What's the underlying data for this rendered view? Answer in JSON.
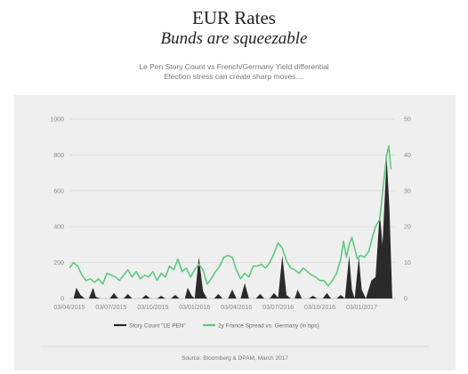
{
  "page": {
    "title": "EUR Rates",
    "subtitle": "Bunds are squeezable",
    "description_line1": "Le Pen Story Count vs French/Germany Yield differential",
    "description_line2": "Election stress can create sharp moves....",
    "source": "Source: Bloomberg &  DPAM, March 2017"
  },
  "chart_data": {
    "type": "area",
    "x_tick_labels": [
      "03/04/2015",
      "03/07/2015",
      "03/10/2015",
      "03/01/2016",
      "03/04/2016",
      "03/07/2016",
      "03/10/2016",
      "03/01/2017"
    ],
    "x_tick_positions": [
      0,
      3,
      6,
      9,
      12,
      15,
      18,
      21
    ],
    "x_range": [
      0,
      23.4
    ],
    "y_left": {
      "ylim": [
        0,
        1000
      ],
      "ticks": [
        "0",
        "200",
        "400",
        "600",
        "800",
        "1000"
      ]
    },
    "y_right": {
      "ylim": [
        0,
        50
      ],
      "ticks": [
        "0",
        "10",
        "20",
        "30",
        "40",
        "50"
      ]
    },
    "grid": "horizontal",
    "legend_position": "bottom",
    "series": [
      {
        "name": "Story Count \"LE PEN\"",
        "kind": "area",
        "axis": "left",
        "color": "#2a2a2a",
        "points": [
          [
            0,
            0
          ],
          [
            0.3,
            0
          ],
          [
            0.5,
            60
          ],
          [
            0.8,
            20
          ],
          [
            1.1,
            0
          ],
          [
            1.4,
            0
          ],
          [
            1.7,
            60
          ],
          [
            1.9,
            10
          ],
          [
            2.2,
            0
          ],
          [
            2.9,
            0
          ],
          [
            3.2,
            30
          ],
          [
            3.5,
            0
          ],
          [
            3.9,
            0
          ],
          [
            4.2,
            25
          ],
          [
            4.5,
            0
          ],
          [
            5.2,
            0
          ],
          [
            5.5,
            20
          ],
          [
            5.8,
            0
          ],
          [
            6.3,
            0
          ],
          [
            6.6,
            15
          ],
          [
            6.9,
            0
          ],
          [
            7.3,
            0
          ],
          [
            7.6,
            20
          ],
          [
            7.9,
            0
          ],
          [
            8.3,
            0
          ],
          [
            8.5,
            60
          ],
          [
            8.8,
            15
          ],
          [
            9.0,
            0
          ],
          [
            9.3,
            230
          ],
          [
            9.6,
            40
          ],
          [
            9.9,
            0
          ],
          [
            10.4,
            0
          ],
          [
            10.7,
            25
          ],
          [
            11.0,
            0
          ],
          [
            11.4,
            0
          ],
          [
            11.7,
            50
          ],
          [
            12.0,
            0
          ],
          [
            12.3,
            0
          ],
          [
            12.6,
            85
          ],
          [
            12.9,
            0
          ],
          [
            13.4,
            0
          ],
          [
            13.7,
            25
          ],
          [
            14.0,
            0
          ],
          [
            14.4,
            0
          ],
          [
            14.7,
            30
          ],
          [
            15.0,
            5
          ],
          [
            15.3,
            240
          ],
          [
            15.6,
            20
          ],
          [
            15.9,
            0
          ],
          [
            16.2,
            0
          ],
          [
            16.4,
            50
          ],
          [
            16.7,
            0
          ],
          [
            17.2,
            0
          ],
          [
            17.5,
            15
          ],
          [
            17.8,
            0
          ],
          [
            18.2,
            0
          ],
          [
            18.5,
            30
          ],
          [
            18.8,
            0
          ],
          [
            19.2,
            0
          ],
          [
            19.5,
            20
          ],
          [
            19.8,
            0
          ],
          [
            20.1,
            240
          ],
          [
            20.3,
            50
          ],
          [
            20.5,
            0
          ],
          [
            20.8,
            230
          ],
          [
            21.0,
            50
          ],
          [
            21.3,
            0
          ],
          [
            21.7,
            100
          ],
          [
            22.0,
            120
          ],
          [
            22.3,
            480
          ],
          [
            22.5,
            300
          ],
          [
            22.8,
            790
          ],
          [
            23.0,
            500
          ],
          [
            23.2,
            0
          ]
        ]
      },
      {
        "name": "2y France Spread vs. Germany (in bps)",
        "kind": "line",
        "axis": "right",
        "color": "#5cc97d",
        "points": [
          [
            0,
            8.5
          ],
          [
            0.3,
            10
          ],
          [
            0.6,
            9
          ],
          [
            0.9,
            6.5
          ],
          [
            1.2,
            5
          ],
          [
            1.5,
            5.5
          ],
          [
            1.8,
            4.5
          ],
          [
            2.1,
            5.5
          ],
          [
            2.4,
            4
          ],
          [
            2.7,
            7
          ],
          [
            3.0,
            6.5
          ],
          [
            3.3,
            6
          ],
          [
            3.6,
            5
          ],
          [
            3.9,
            6.5
          ],
          [
            4.2,
            8
          ],
          [
            4.5,
            6
          ],
          [
            4.8,
            7.5
          ],
          [
            5.1,
            5.5
          ],
          [
            5.4,
            6.5
          ],
          [
            5.7,
            6
          ],
          [
            6.0,
            7.5
          ],
          [
            6.3,
            5
          ],
          [
            6.6,
            7
          ],
          [
            6.9,
            6
          ],
          [
            7.2,
            9
          ],
          [
            7.5,
            8
          ],
          [
            7.8,
            11
          ],
          [
            8.1,
            7.5
          ],
          [
            8.4,
            8.5
          ],
          [
            8.7,
            6
          ],
          [
            9.0,
            8
          ],
          [
            9.3,
            9.5
          ],
          [
            9.6,
            8
          ],
          [
            9.9,
            4
          ],
          [
            10.2,
            5.5
          ],
          [
            10.5,
            7.5
          ],
          [
            10.8,
            9
          ],
          [
            11.1,
            11.5
          ],
          [
            11.4,
            12
          ],
          [
            11.7,
            11.5
          ],
          [
            12.0,
            8
          ],
          [
            12.3,
            5.5
          ],
          [
            12.6,
            7
          ],
          [
            12.9,
            6
          ],
          [
            13.2,
            9
          ],
          [
            13.5,
            9
          ],
          [
            13.8,
            9.5
          ],
          [
            14.1,
            8.5
          ],
          [
            14.4,
            10
          ],
          [
            14.7,
            12.5
          ],
          [
            15.0,
            15.5
          ],
          [
            15.3,
            14
          ],
          [
            15.6,
            10.5
          ],
          [
            15.9,
            8.5
          ],
          [
            16.2,
            8
          ],
          [
            16.5,
            7
          ],
          [
            16.8,
            8.5
          ],
          [
            17.1,
            7.5
          ],
          [
            17.4,
            6.5
          ],
          [
            17.7,
            6
          ],
          [
            18.0,
            5
          ],
          [
            18.3,
            5
          ],
          [
            18.6,
            3.5
          ],
          [
            18.9,
            5
          ],
          [
            19.2,
            7
          ],
          [
            19.5,
            11
          ],
          [
            19.7,
            16
          ],
          [
            19.9,
            11.5
          ],
          [
            20.1,
            15
          ],
          [
            20.3,
            17
          ],
          [
            20.5,
            14
          ],
          [
            20.7,
            11
          ],
          [
            20.9,
            12
          ],
          [
            21.2,
            11.5
          ],
          [
            21.5,
            13
          ],
          [
            21.8,
            17.5
          ],
          [
            22.0,
            20
          ],
          [
            22.3,
            22
          ],
          [
            22.6,
            33
          ],
          [
            22.8,
            40
          ],
          [
            22.95,
            42.5
          ],
          [
            23.1,
            36
          ]
        ]
      }
    ]
  }
}
